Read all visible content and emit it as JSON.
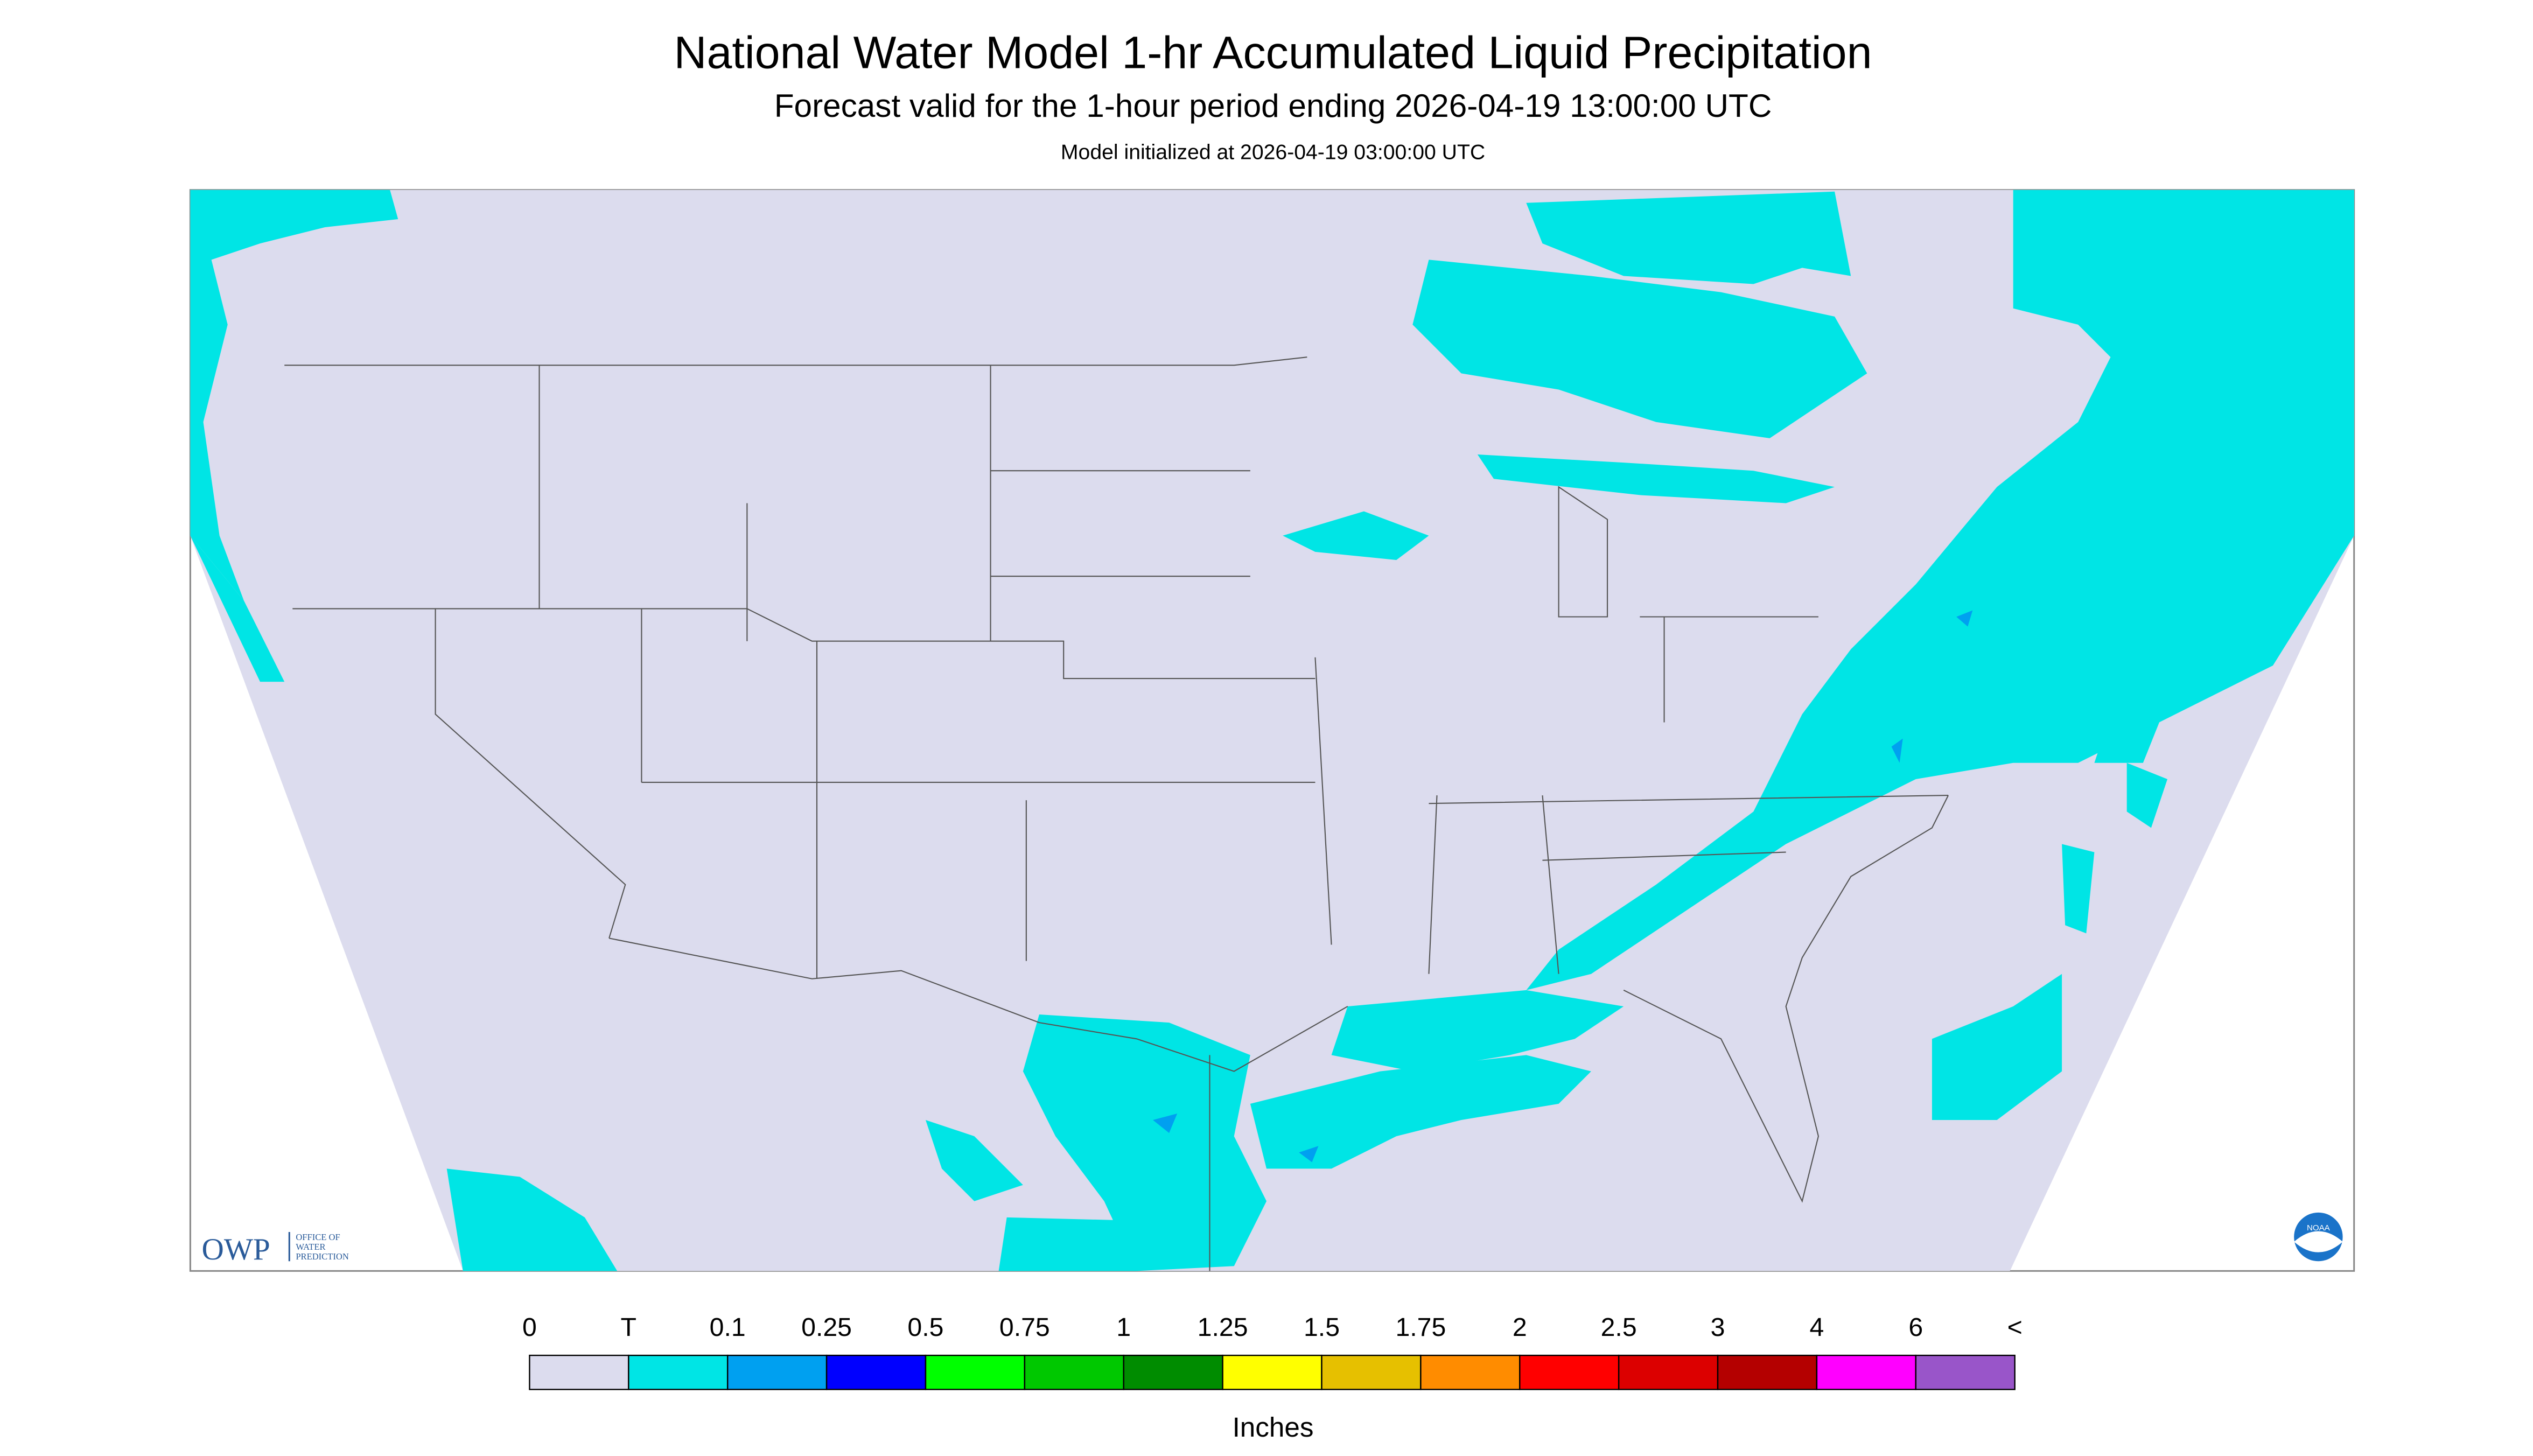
{
  "header": {
    "title": "National Water Model 1-hr Accumulated Liquid Precipitation",
    "subtitle": "Forecast valid for the 1-hour period ending 2026-04-19 13:00:00 UTC",
    "init": "Model initialized at 2026-04-19 03:00:00 UTC"
  },
  "legend": {
    "labels": [
      "0",
      "T",
      "0.1",
      "0.25",
      "0.5",
      "0.75",
      "1",
      "1.25",
      "1.5",
      "1.75",
      "2",
      "2.5",
      "3",
      "4",
      "6",
      "<"
    ],
    "colors": [
      "#dcdcee",
      "#00e5e5",
      "#00a0f0",
      "#0000ff",
      "#00ff00",
      "#00c800",
      "#008c00",
      "#ffff00",
      "#e6c000",
      "#ff8c00",
      "#ff0000",
      "#dc0000",
      "#b40000",
      "#ff00ff",
      "#9955c9"
    ],
    "unit": "Inches"
  },
  "logo": {
    "name": "OWP",
    "lines": [
      "OFFICE OF",
      "WATER",
      "PREDICTION"
    ]
  },
  "badge": "NOAA"
}
